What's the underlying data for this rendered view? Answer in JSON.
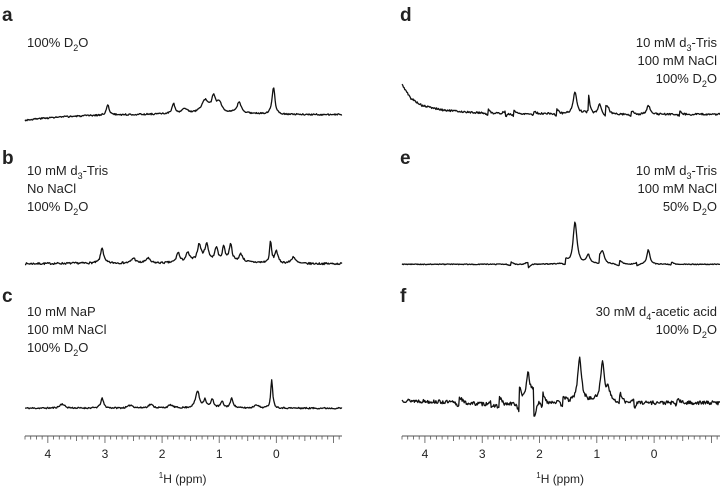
{
  "chart_data": [
    {
      "type": "line",
      "panel_label": "a",
      "conditions": [
        [
          {
            "t": "100% D"
          },
          {
            "t": "2",
            "sub": true
          },
          {
            "t": "O"
          }
        ]
      ],
      "x_axis": "left",
      "trace": {
        "baseline": 0.55,
        "noise": 0.25,
        "seed": 3,
        "drift": [
          [
            4.4,
            -0.9
          ],
          [
            4.1,
            -0.6
          ],
          [
            3.7,
            -0.35
          ],
          [
            3.2,
            -0.15
          ],
          [
            2.8,
            -0.05
          ],
          [
            2.2,
            0.05
          ],
          [
            1.5,
            0.15
          ],
          [
            1.0,
            0.3
          ],
          [
            0.6,
            0.2
          ],
          [
            0.1,
            0.05
          ],
          [
            -0.3,
            0.0
          ],
          [
            -1.15,
            0.0
          ]
        ],
        "peaks": [
          [
            2.95,
            1.6,
            0.03
          ],
          [
            1.8,
            1.6,
            0.03
          ],
          [
            1.6,
            0.8,
            0.05
          ],
          [
            1.25,
            2.0,
            0.07
          ],
          [
            1.1,
            2.4,
            0.04
          ],
          [
            1.0,
            1.6,
            0.05
          ],
          [
            0.65,
            1.8,
            0.04
          ],
          [
            0.05,
            4.4,
            0.03
          ]
        ]
      }
    },
    {
      "type": "line",
      "panel_label": "b",
      "conditions": [
        [
          {
            "t": "10 mM d"
          },
          {
            "t": "3",
            "sub": true
          },
          {
            "t": "-Tris"
          }
        ],
        [
          {
            "t": "No NaCl"
          }
        ],
        [
          {
            "t": "100% D"
          },
          {
            "t": "2",
            "sub": true
          },
          {
            "t": "O"
          }
        ]
      ],
      "x_axis": "left",
      "trace": {
        "baseline": 0.4,
        "noise": 0.35,
        "seed": 7,
        "drift": [
          [
            4.4,
            0.0
          ],
          [
            3.3,
            0.1
          ],
          [
            2.0,
            0.1
          ],
          [
            1.2,
            0.3
          ],
          [
            0.4,
            0.2
          ],
          [
            -0.4,
            0.0
          ],
          [
            -1.15,
            0.0
          ]
        ],
        "peaks": [
          [
            3.05,
            2.8,
            0.03
          ],
          [
            2.5,
            0.9,
            0.04
          ],
          [
            2.25,
            0.9,
            0.04
          ],
          [
            1.72,
            1.8,
            0.03
          ],
          [
            1.55,
            1.6,
            0.04
          ],
          [
            1.35,
            3.0,
            0.04
          ],
          [
            1.22,
            3.0,
            0.04
          ],
          [
            1.05,
            2.5,
            0.03
          ],
          [
            0.92,
            2.6,
            0.03
          ],
          [
            0.8,
            3.2,
            0.03
          ],
          [
            0.62,
            1.4,
            0.04
          ],
          [
            0.1,
            3.8,
            0.02
          ],
          [
            0.0,
            2.2,
            0.03
          ],
          [
            -0.3,
            1.2,
            0.04
          ]
        ]
      }
    },
    {
      "type": "line",
      "panel_label": "c",
      "conditions": [
        [
          {
            "t": "10 mM NaP"
          }
        ],
        [
          {
            "t": "100 mM NaCl"
          }
        ],
        [
          {
            "t": "100% D"
          },
          {
            "t": "2",
            "sub": true
          },
          {
            "t": "O"
          }
        ]
      ],
      "x_axis": "left",
      "trace": {
        "baseline": 0.3,
        "noise": 0.25,
        "seed": 11,
        "drift": [
          [
            4.4,
            0.0
          ],
          [
            -1.15,
            0.0
          ]
        ],
        "peaks": [
          [
            3.75,
            0.7,
            0.05
          ],
          [
            3.05,
            1.6,
            0.03
          ],
          [
            2.55,
            0.5,
            0.05
          ],
          [
            2.2,
            0.6,
            0.05
          ],
          [
            1.85,
            0.5,
            0.05
          ],
          [
            1.38,
            2.8,
            0.04
          ],
          [
            1.25,
            1.3,
            0.03
          ],
          [
            1.12,
            1.4,
            0.03
          ],
          [
            0.95,
            1.0,
            0.03
          ],
          [
            0.78,
            1.6,
            0.03
          ],
          [
            0.35,
            0.6,
            0.04
          ],
          [
            0.08,
            4.8,
            0.02
          ]
        ]
      }
    },
    {
      "type": "line",
      "panel_label": "d",
      "conditions": [
        [
          {
            "t": "10 mM d"
          },
          {
            "t": "3",
            "sub": true
          },
          {
            "t": "-Tris"
          }
        ],
        [
          {
            "t": "100 mM NaCl"
          }
        ],
        [
          {
            "t": "100% D"
          },
          {
            "t": "2",
            "sub": true
          },
          {
            "t": "O"
          }
        ]
      ],
      "x_axis": "right",
      "trace": {
        "baseline": 0.6,
        "noise": 0.3,
        "seed": 5,
        "drift": [
          [
            4.4,
            4.8
          ],
          [
            4.25,
            2.6
          ],
          [
            4.05,
            1.4
          ],
          [
            3.7,
            0.7
          ],
          [
            3.2,
            0.3
          ],
          [
            2.5,
            0.1
          ],
          [
            1.5,
            0.1
          ],
          [
            0.5,
            0.0
          ],
          [
            -1.15,
            0.0
          ]
        ],
        "wiggles": [
          [
            2.9,
            0.5,
            0.05
          ],
          [
            2.6,
            -0.5,
            0.05
          ],
          [
            2.45,
            0.5,
            0.05
          ],
          [
            2.1,
            0.4,
            0.05
          ],
          [
            1.7,
            0.6,
            0.05
          ],
          [
            1.15,
            1.5,
            0.04
          ],
          [
            0.85,
            1.1,
            0.04
          ],
          [
            0.4,
            0.5,
            0.05
          ],
          [
            -0.45,
            0.4,
            0.05
          ]
        ],
        "peaks": [
          [
            1.38,
            3.6,
            0.035
          ],
          [
            1.15,
            1.4,
            0.03
          ],
          [
            0.95,
            1.6,
            0.03
          ],
          [
            0.8,
            0.8,
            0.03
          ],
          [
            0.1,
            1.5,
            0.03
          ]
        ]
      }
    },
    {
      "type": "line",
      "panel_label": "e",
      "conditions": [
        [
          {
            "t": "10 mM d"
          },
          {
            "t": "3",
            "sub": true
          },
          {
            "t": "-Tris"
          }
        ],
        [
          {
            "t": "100 mM NaCl"
          }
        ],
        [
          {
            "t": "50% D"
          },
          {
            "t": "2",
            "sub": true
          },
          {
            "t": "O"
          }
        ]
      ],
      "x_axis": "right",
      "trace": {
        "baseline": 0.3,
        "noise": 0.15,
        "seed": 9,
        "drift": [
          [
            4.4,
            0.0
          ],
          [
            -1.15,
            0.0
          ]
        ],
        "wiggles": [
          [
            2.5,
            0.4,
            0.05
          ],
          [
            2.2,
            -0.6,
            0.05
          ],
          [
            1.55,
            0.7,
            0.05
          ],
          [
            0.95,
            0.9,
            0.05
          ],
          [
            0.6,
            0.6,
            0.06
          ],
          [
            0.3,
            -0.3,
            0.05
          ],
          [
            -0.3,
            0.3,
            0.05
          ]
        ],
        "peaks": [
          [
            1.38,
            7.5,
            0.04
          ],
          [
            1.15,
            1.6,
            0.035
          ],
          [
            0.9,
            2.0,
            0.04
          ],
          [
            0.1,
            2.6,
            0.03
          ]
        ]
      }
    },
    {
      "type": "line",
      "panel_label": "f",
      "conditions": [
        [
          {
            "t": "30 mM d"
          },
          {
            "t": "4",
            "sub": true
          },
          {
            "t": "-acetic acid"
          }
        ],
        [
          {
            "t": "100% D"
          },
          {
            "t": "2",
            "sub": true
          },
          {
            "t": "O"
          }
        ]
      ],
      "x_axis": "right",
      "trace": {
        "baseline": 1.2,
        "noise": 0.65,
        "seed": 13,
        "drift": [
          [
            4.4,
            0.4
          ],
          [
            3.6,
            0.1
          ],
          [
            3.0,
            -0.2
          ],
          [
            2.5,
            -0.3
          ],
          [
            2.0,
            0.0
          ],
          [
            1.0,
            0.2
          ],
          [
            0.0,
            0.0
          ],
          [
            -1.15,
            0.0
          ]
        ],
        "wiggles": [
          [
            3.4,
            1.0,
            0.06
          ],
          [
            2.85,
            -0.9,
            0.05
          ],
          [
            2.7,
            1.1,
            0.05
          ],
          [
            2.35,
            2.2,
            0.05
          ],
          [
            2.1,
            -3.0,
            0.05
          ],
          [
            1.95,
            1.5,
            0.05
          ],
          [
            1.6,
            1.0,
            0.06
          ],
          [
            0.6,
            1.2,
            0.05
          ],
          [
            0.35,
            -0.8,
            0.05
          ],
          [
            -0.4,
            0.6,
            0.06
          ]
        ],
        "peaks": [
          [
            2.2,
            5.2,
            0.04
          ],
          [
            1.3,
            7.2,
            0.04
          ],
          [
            0.9,
            6.4,
            0.04
          ],
          [
            0.8,
            2.0,
            0.03
          ]
        ]
      }
    }
  ],
  "axis": {
    "xlim": [
      4.4,
      -1.15
    ],
    "major_ticks": [
      4,
      3,
      2,
      1,
      0
    ],
    "minor_step": 0.1,
    "label": [
      {
        "t": "1",
        "sup": true
      },
      {
        "t": "H (ppm)"
      }
    ]
  }
}
